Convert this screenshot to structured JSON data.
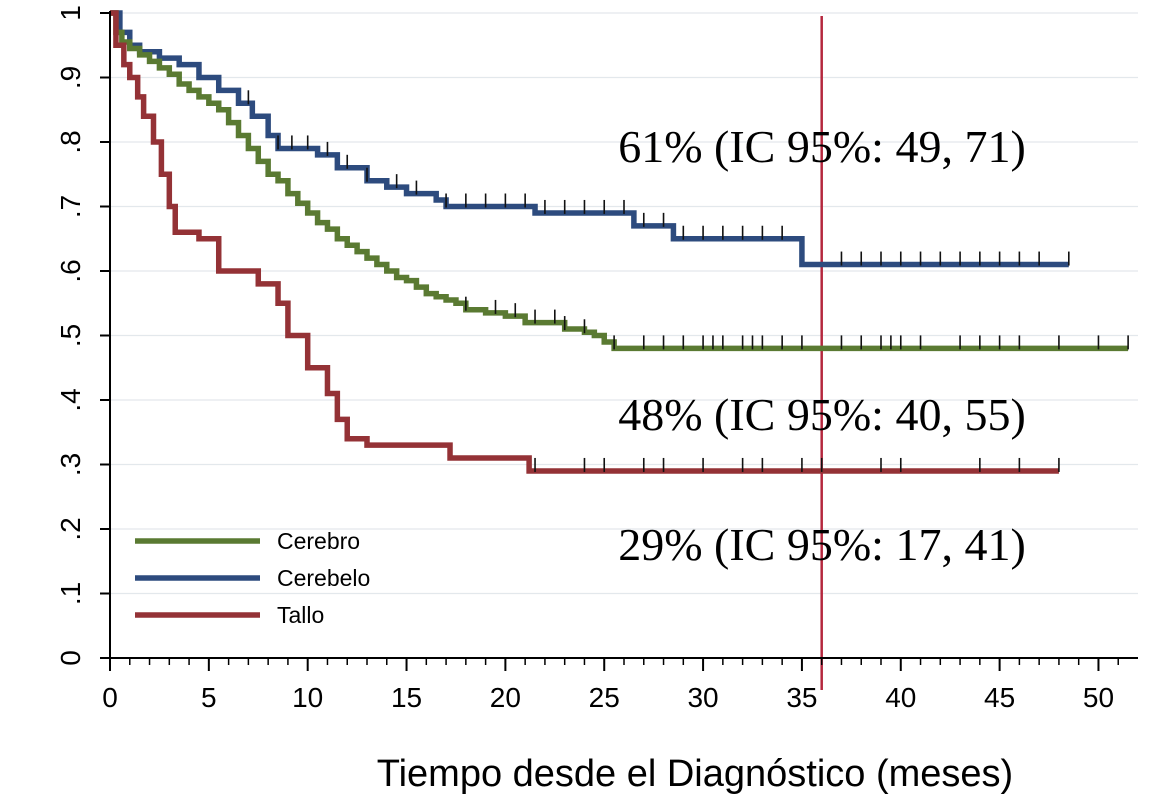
{
  "chart_data": {
    "type": "line",
    "subtype": "kaplan-meier step",
    "title": "",
    "xlabel": "Tiempo desde el Diagnóstico (meses)",
    "ylabel": "",
    "xlim": [
      0,
      52
    ],
    "ylim": [
      0,
      1
    ],
    "x_ticks": [
      0,
      5,
      10,
      15,
      20,
      25,
      30,
      35,
      40,
      45,
      50
    ],
    "x_tick_labels": [
      "0",
      "5",
      "10",
      "15",
      "20",
      "25",
      "30",
      "35",
      "40",
      "45",
      "50"
    ],
    "y_ticks": [
      0,
      0.1,
      0.2,
      0.3,
      0.4,
      0.5,
      0.6,
      0.7,
      0.8,
      0.9,
      1
    ],
    "y_tick_labels": [
      "0",
      ".1",
      ".2",
      ".3",
      ".4",
      ".5",
      ".6",
      ".7",
      ".8",
      ".9",
      "1"
    ],
    "grid": true,
    "legend_position": "bottom-left",
    "reference_line": {
      "x": 36,
      "color": "#B5273E"
    },
    "series": [
      {
        "name": "Cerebro",
        "color": "#5A7A32",
        "x": [
          0,
          0.3,
          0.6,
          1,
          1.5,
          2,
          2.5,
          3,
          3.5,
          4,
          4.5,
          5,
          5.5,
          6,
          6.5,
          7,
          7.5,
          8,
          8.5,
          9,
          9.5,
          10,
          10.5,
          11,
          11.5,
          12,
          12.5,
          13,
          13.5,
          14,
          14.5,
          15,
          15.5,
          16,
          16.5,
          17,
          17.5,
          18,
          19,
          20,
          21,
          22,
          23,
          24,
          24.5,
          25,
          25.5,
          51.5
        ],
        "y": [
          1,
          0.97,
          0.955,
          0.945,
          0.935,
          0.925,
          0.915,
          0.905,
          0.89,
          0.88,
          0.87,
          0.86,
          0.85,
          0.83,
          0.81,
          0.79,
          0.77,
          0.75,
          0.74,
          0.72,
          0.705,
          0.69,
          0.675,
          0.665,
          0.65,
          0.64,
          0.63,
          0.62,
          0.61,
          0.6,
          0.59,
          0.585,
          0.575,
          0.565,
          0.56,
          0.555,
          0.55,
          0.54,
          0.535,
          0.53,
          0.52,
          0.52,
          0.51,
          0.505,
          0.5,
          0.49,
          0.48,
          0.48
        ],
        "censored": [
          18,
          19.5,
          20.5,
          21.5,
          22.5,
          23,
          24,
          25.5,
          27,
          28,
          29,
          30,
          30.5,
          31,
          32,
          32.5,
          33,
          34,
          35,
          37,
          38,
          39,
          39.5,
          40,
          41,
          43,
          44,
          45,
          46,
          48,
          50,
          51.5
        ],
        "annotation": "48% (IC 95%: 40, 55)"
      },
      {
        "name": "Cerebelo",
        "color": "#2D4B7E",
        "x": [
          0,
          0.5,
          1,
          1.5,
          2.5,
          3.5,
          4.5,
          5.5,
          6.5,
          7.2,
          8,
          8.5,
          10.5,
          11.5,
          13,
          14,
          15,
          16.5,
          17,
          21.5,
          26.5,
          28.5,
          35,
          48.5
        ],
        "y": [
          1,
          0.97,
          0.95,
          0.94,
          0.93,
          0.92,
          0.9,
          0.88,
          0.86,
          0.84,
          0.81,
          0.79,
          0.78,
          0.76,
          0.74,
          0.73,
          0.72,
          0.71,
          0.7,
          0.69,
          0.67,
          0.65,
          0.61,
          0.61
        ],
        "censored": [
          7,
          8.5,
          9.2,
          10,
          11,
          12,
          13,
          14.5,
          15.5,
          17,
          18,
          19,
          20,
          21,
          22,
          23,
          24,
          25,
          26,
          27,
          28,
          29,
          30,
          31,
          32,
          33,
          34,
          37,
          38,
          39,
          40,
          41,
          42,
          43,
          44,
          45,
          46,
          47,
          48.5
        ],
        "annotation": "61% (IC 95%: 49, 71)"
      },
      {
        "name": "Tallo",
        "color": "#943236",
        "x": [
          0,
          0.3,
          0.7,
          1,
          1.4,
          1.7,
          2.2,
          2.6,
          3,
          3.3,
          4.5,
          5.5,
          7.5,
          8.5,
          9,
          10,
          11,
          11.5,
          12,
          13,
          17.2,
          21.2,
          48
        ],
        "y": [
          1,
          0.95,
          0.92,
          0.9,
          0.87,
          0.84,
          0.8,
          0.75,
          0.7,
          0.66,
          0.65,
          0.6,
          0.58,
          0.55,
          0.5,
          0.45,
          0.41,
          0.37,
          0.34,
          0.33,
          0.31,
          0.29,
          0.29
        ],
        "censored": [
          21.5,
          24,
          25,
          27,
          28,
          30,
          32,
          33,
          35,
          36,
          39,
          40,
          44,
          46,
          48
        ],
        "annotation": "29% (IC 95%: 17, 41)"
      }
    ]
  }
}
